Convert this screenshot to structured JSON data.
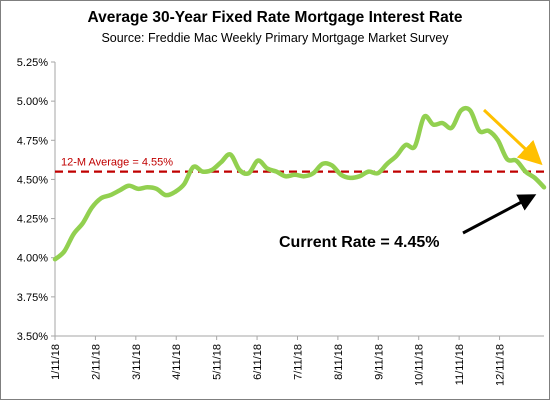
{
  "chart_data": {
    "type": "line",
    "title": "Average 30-Year Fixed Rate Mortgage Interest Rate",
    "subtitle": "Source: Freddie Mac Weekly Primary Mortgage Market Survey",
    "xlabel": "",
    "ylabel": "",
    "ylim": [
      3.5,
      5.25
    ],
    "yticks": [
      3.5,
      3.75,
      4.0,
      4.25,
      4.5,
      4.75,
      5.0,
      5.25
    ],
    "ytick_labels": [
      "3.50%",
      "3.75%",
      "4.00%",
      "4.25%",
      "4.50%",
      "4.75%",
      "5.00%",
      "5.25%"
    ],
    "xtick_labels": [
      "1/11/18",
      "2/11/18",
      "3/11/18",
      "4/11/18",
      "5/11/18",
      "6/11/18",
      "7/11/18",
      "8/11/18",
      "9/11/18",
      "10/11/18",
      "11/11/18",
      "12/11/18"
    ],
    "grid": false,
    "series": [
      {
        "color": "#92d050",
        "values": [
          3.99,
          4.04,
          4.15,
          4.22,
          4.32,
          4.38,
          4.4,
          4.43,
          4.46,
          4.44,
          4.45,
          4.44,
          4.4,
          4.42,
          4.47,
          4.58,
          4.55,
          4.56,
          4.61,
          4.66,
          4.56,
          4.54,
          4.62,
          4.57,
          4.55,
          4.52,
          4.53,
          4.52,
          4.54,
          4.6,
          4.59,
          4.53,
          4.51,
          4.52,
          4.55,
          4.54,
          4.6,
          4.65,
          4.72,
          4.71,
          4.9,
          4.85,
          4.86,
          4.83,
          4.94,
          4.94,
          4.81,
          4.81,
          4.75,
          4.63,
          4.62,
          4.55,
          4.51,
          4.45
        ]
      }
    ],
    "average_line": {
      "value": 4.55,
      "label": "12-M Average = 4.55%",
      "color": "#c00000"
    },
    "annotation": {
      "text": "Current Rate = 4.45%"
    },
    "trend_arrow_color": "#ffc000",
    "current_arrow_color": "#000000"
  }
}
